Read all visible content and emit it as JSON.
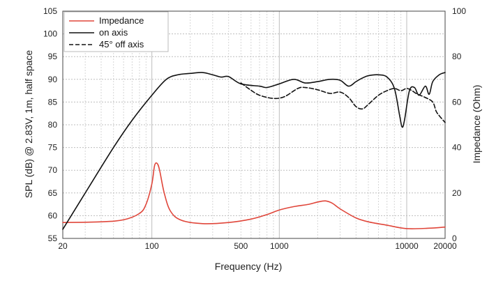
{
  "chart_data": {
    "type": "line",
    "xscale": "log",
    "xlabel": "Frequency (Hz)",
    "ylabel": "SPL (dB) @ 2.83V, 1m, half space",
    "y2label": "Impedance (Ohm)",
    "xlim": [
      20,
      20000
    ],
    "ylim": [
      55,
      105
    ],
    "y2lim": [
      0,
      100
    ],
    "grid": true,
    "legend_position": "top-left",
    "x_ticks": [
      {
        "value": 20,
        "label": "20"
      },
      {
        "value": 100,
        "label": "100"
      },
      {
        "value": 500,
        "label": "500"
      },
      {
        "value": 1000,
        "label": "1000"
      },
      {
        "value": 10000,
        "label": "10000"
      },
      {
        "value": 20000,
        "label": "20000"
      }
    ],
    "y_ticks": [
      "55",
      "60",
      "65",
      "70",
      "75",
      "80",
      "85",
      "90",
      "95",
      "100",
      "105"
    ],
    "y2_ticks": [
      "0",
      "20",
      "40",
      "60",
      "80",
      "100"
    ],
    "series": [
      {
        "name": "Impedance",
        "axis": "right",
        "color": "#e0463a",
        "dash": "solid",
        "points": [
          [
            20,
            7
          ],
          [
            40,
            7.3
          ],
          [
            60,
            8.2
          ],
          [
            80,
            11
          ],
          [
            90,
            15
          ],
          [
            100,
            24
          ],
          [
            105,
            32
          ],
          [
            110,
            33
          ],
          [
            115,
            30
          ],
          [
            125,
            20
          ],
          [
            140,
            12
          ],
          [
            170,
            8
          ],
          [
            250,
            6.5
          ],
          [
            400,
            7
          ],
          [
            600,
            8.5
          ],
          [
            800,
            10.5
          ],
          [
            1000,
            12.5
          ],
          [
            1300,
            14
          ],
          [
            1700,
            15
          ],
          [
            2000,
            16
          ],
          [
            2300,
            16.5
          ],
          [
            2600,
            15.5
          ],
          [
            3000,
            13
          ],
          [
            4000,
            9
          ],
          [
            5000,
            7.3
          ],
          [
            7000,
            5.8
          ],
          [
            10000,
            4.3
          ],
          [
            15000,
            4.5
          ],
          [
            20000,
            5
          ]
        ]
      },
      {
        "name": "on axis",
        "axis": "left",
        "color": "#111111",
        "dash": "solid",
        "points": [
          [
            20,
            57
          ],
          [
            30,
            65
          ],
          [
            50,
            75
          ],
          [
            70,
            81
          ],
          [
            100,
            86.5
          ],
          [
            130,
            90
          ],
          [
            160,
            91
          ],
          [
            200,
            91.3
          ],
          [
            250,
            91.5
          ],
          [
            300,
            91
          ],
          [
            350,
            90.5
          ],
          [
            400,
            90.6
          ],
          [
            500,
            89
          ],
          [
            700,
            88.5
          ],
          [
            800,
            88.2
          ],
          [
            1000,
            89
          ],
          [
            1300,
            90
          ],
          [
            1600,
            89.2
          ],
          [
            2000,
            89.5
          ],
          [
            2500,
            90
          ],
          [
            3000,
            89.8
          ],
          [
            3500,
            88.5
          ],
          [
            4000,
            89.5
          ],
          [
            4500,
            90.3
          ],
          [
            5000,
            90.8
          ],
          [
            6000,
            91
          ],
          [
            7000,
            90.5
          ],
          [
            8000,
            88
          ],
          [
            8800,
            82
          ],
          [
            9200,
            79.5
          ],
          [
            9600,
            81
          ],
          [
            10500,
            87.5
          ],
          [
            11500,
            88.2
          ],
          [
            12500,
            86.5
          ],
          [
            14000,
            88.5
          ],
          [
            15000,
            86.7
          ],
          [
            16000,
            89.5
          ],
          [
            18000,
            91
          ],
          [
            20000,
            91.5
          ]
        ]
      },
      {
        "name": "45° off axis",
        "axis": "left",
        "color": "#111111",
        "dash": "dashed",
        "points": [
          [
            500,
            89.2
          ],
          [
            600,
            87.6
          ],
          [
            700,
            86.5
          ],
          [
            900,
            85.8
          ],
          [
            1100,
            86.2
          ],
          [
            1400,
            88
          ],
          [
            1600,
            88.2
          ],
          [
            2000,
            87.7
          ],
          [
            2500,
            86.9
          ],
          [
            3000,
            87.2
          ],
          [
            3500,
            86
          ],
          [
            4000,
            84
          ],
          [
            4500,
            83.5
          ],
          [
            5000,
            84.5
          ],
          [
            6000,
            86.5
          ],
          [
            7000,
            87.5
          ],
          [
            8000,
            88
          ],
          [
            9000,
            87.5
          ],
          [
            10000,
            88
          ],
          [
            11000,
            87.5
          ],
          [
            12000,
            86.8
          ],
          [
            14000,
            86
          ],
          [
            16000,
            85
          ],
          [
            17000,
            83
          ],
          [
            18000,
            82
          ],
          [
            20000,
            80.5
          ]
        ]
      }
    ]
  }
}
